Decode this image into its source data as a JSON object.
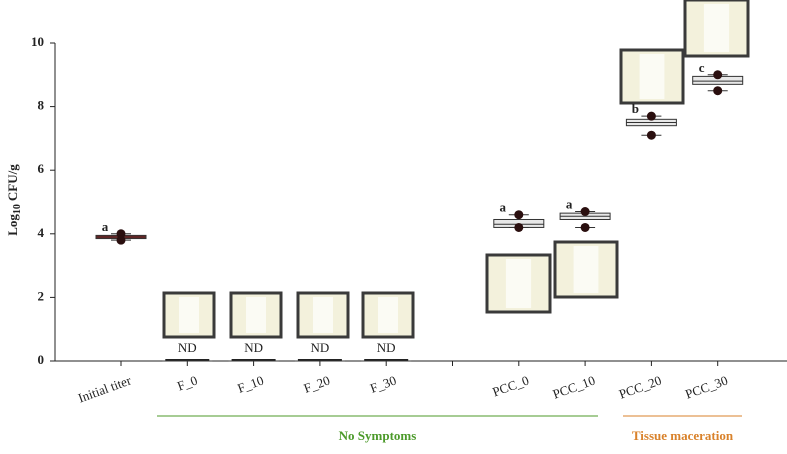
{
  "chart_data": {
    "type": "box",
    "y_label": {
      "main": "Log",
      "sub": "10",
      "unit": "CFU/g"
    },
    "categories": [
      "Initial titer",
      "F_0",
      "F_10",
      "F_20",
      "F_30",
      null,
      "PCC_0",
      "PCC_10",
      "PCC_20",
      "PCC_30"
    ],
    "q1": [
      3.85,
      0,
      0,
      0,
      0,
      null,
      4.2,
      4.45,
      7.4,
      8.7
    ],
    "median": [
      3.9,
      0,
      0,
      0,
      0,
      null,
      4.3,
      4.55,
      7.5,
      8.8
    ],
    "q3": [
      3.95,
      0,
      0,
      0,
      0,
      null,
      4.45,
      4.65,
      7.6,
      8.95
    ],
    "high_points": [
      4.0,
      null,
      null,
      null,
      null,
      null,
      4.6,
      4.7,
      7.7,
      9.0
    ],
    "low_points": [
      3.8,
      null,
      null,
      null,
      null,
      null,
      4.2,
      4.2,
      7.1,
      8.5
    ],
    "letters": [
      "a",
      null,
      null,
      null,
      null,
      null,
      "a",
      "a",
      "b",
      "c"
    ],
    "annotations": [
      null,
      "ND",
      "ND",
      "ND",
      "ND",
      null,
      null,
      null,
      null,
      null
    ],
    "box_colors": [
      "#8b1a1a",
      "#222222",
      "#222222",
      "#222222",
      "#222222",
      null,
      "#e8e8e8",
      "#e8e8e8",
      "#e8e8e8",
      "#e8e8e8"
    ],
    "ylim": [
      0,
      10
    ],
    "yticks": [
      0,
      2,
      4,
      6,
      8,
      10
    ],
    "groups": [
      {
        "label": "No Symptoms",
        "color": "#4c9a2a"
      },
      {
        "label": "Tissue maceration",
        "color": "#d9822b"
      }
    ]
  }
}
